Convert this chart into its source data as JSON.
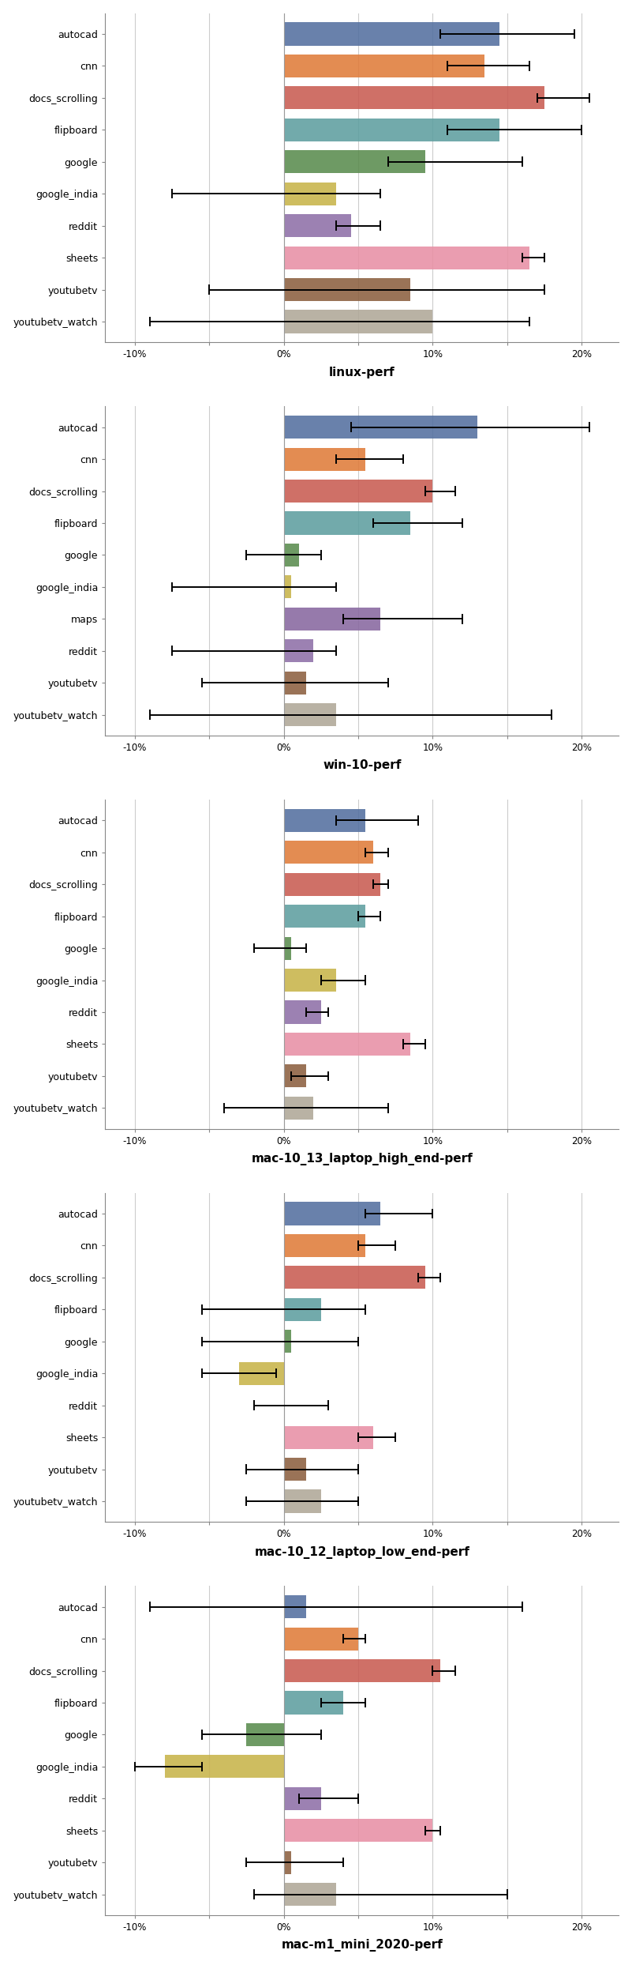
{
  "charts": [
    {
      "title": "linux-perf",
      "categories": [
        "autocad",
        "cnn",
        "docs_scrolling",
        "flipboard",
        "google",
        "google_india",
        "reddit",
        "sheets",
        "youtubetv",
        "youtubetv_watch"
      ],
      "values": [
        14.5,
        13.5,
        17.5,
        14.5,
        9.5,
        3.5,
        4.5,
        16.5,
        8.5,
        10.0
      ],
      "err_low": [
        10.5,
        11.0,
        17.0,
        11.0,
        7.0,
        -7.5,
        3.5,
        16.0,
        -5.0,
        -9.0
      ],
      "err_high": [
        19.5,
        16.5,
        20.5,
        20.0,
        16.0,
        6.5,
        6.5,
        17.5,
        17.5,
        16.5
      ]
    },
    {
      "title": "win-10-perf",
      "categories": [
        "autocad",
        "cnn",
        "docs_scrolling",
        "flipboard",
        "google",
        "google_india",
        "maps",
        "reddit",
        "youtubetv",
        "youtubetv_watch"
      ],
      "values": [
        13.0,
        5.5,
        10.0,
        8.5,
        1.0,
        0.5,
        6.5,
        2.0,
        1.5,
        3.5
      ],
      "err_low": [
        4.5,
        3.5,
        9.5,
        6.0,
        -2.5,
        -7.5,
        4.0,
        -7.5,
        -5.5,
        -9.0
      ],
      "err_high": [
        20.5,
        8.0,
        11.5,
        12.0,
        2.5,
        3.5,
        12.0,
        3.5,
        7.0,
        18.0
      ]
    },
    {
      "title": "mac-10_13_laptop_high_end-perf",
      "categories": [
        "autocad",
        "cnn",
        "docs_scrolling",
        "flipboard",
        "google",
        "google_india",
        "reddit",
        "sheets",
        "youtubetv",
        "youtubetv_watch"
      ],
      "values": [
        5.5,
        6.0,
        6.5,
        5.5,
        0.5,
        3.5,
        2.5,
        8.5,
        1.5,
        2.0
      ],
      "err_low": [
        3.5,
        5.5,
        6.0,
        5.0,
        -2.0,
        2.5,
        1.5,
        8.0,
        0.5,
        -4.0
      ],
      "err_high": [
        9.0,
        7.0,
        7.0,
        6.5,
        1.5,
        5.5,
        3.0,
        9.5,
        3.0,
        7.0
      ]
    },
    {
      "title": "mac-10_12_laptop_low_end-perf",
      "categories": [
        "autocad",
        "cnn",
        "docs_scrolling",
        "flipboard",
        "google",
        "google_india",
        "reddit",
        "sheets",
        "youtubetv",
        "youtubetv_watch"
      ],
      "values": [
        6.5,
        5.5,
        9.5,
        2.5,
        0.5,
        -3.0,
        0.0,
        6.0,
        1.5,
        2.5
      ],
      "err_low": [
        5.5,
        5.0,
        9.0,
        -5.5,
        -5.5,
        -5.5,
        -2.0,
        5.0,
        -2.5,
        -2.5
      ],
      "err_high": [
        10.0,
        7.5,
        10.5,
        5.5,
        5.0,
        -0.5,
        3.0,
        7.5,
        5.0,
        5.0
      ]
    },
    {
      "title": "mac-m1_mini_2020-perf",
      "categories": [
        "autocad",
        "cnn",
        "docs_scrolling",
        "flipboard",
        "google",
        "google_india",
        "reddit",
        "sheets",
        "youtubetv",
        "youtubetv_watch"
      ],
      "values": [
        1.5,
        5.0,
        10.5,
        4.0,
        -2.5,
        -8.0,
        2.5,
        10.0,
        0.5,
        3.5
      ],
      "err_low": [
        -9.0,
        4.0,
        10.0,
        2.5,
        -5.5,
        -10.0,
        1.0,
        9.5,
        -2.5,
        -2.0
      ],
      "err_high": [
        16.0,
        5.5,
        11.5,
        5.5,
        2.5,
        -5.5,
        5.0,
        10.5,
        4.0,
        15.0
      ]
    }
  ],
  "colors": {
    "autocad": "#5470a0",
    "cnn": "#e07c3a",
    "docs_scrolling": "#c95c52",
    "flipboard": "#5e9fa0",
    "google": "#5a8c4e",
    "google_india": "#c8b44a",
    "maps": "#8868a0",
    "reddit": "#8f70a8",
    "sheets": "#e890a5",
    "youtubetv": "#8c6040",
    "youtubetv_watch": "#b0a898"
  },
  "xlim": [
    -0.12,
    0.225
  ],
  "bar_height": 0.72,
  "background_color": "#ffffff",
  "plot_bg": "#ffffff",
  "grid_color": "#cccccc",
  "title_fontsize": 11,
  "label_fontsize": 9,
  "tick_fontsize": 8.5
}
